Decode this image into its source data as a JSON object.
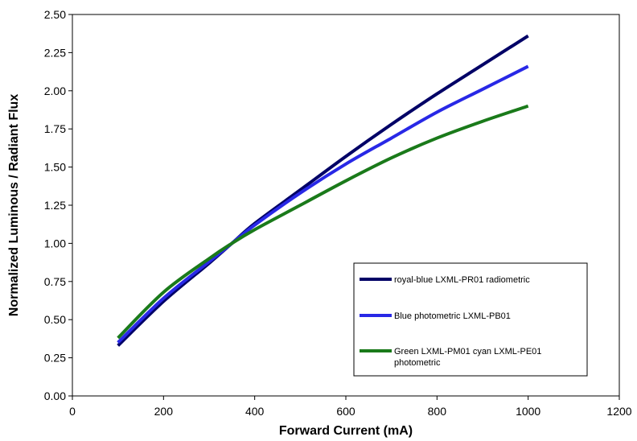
{
  "chart_data": {
    "type": "line",
    "xlabel": "Forward Current (mA)",
    "ylabel": "Normalized Luminous / Radiant Flux",
    "xlim": [
      0,
      1200
    ],
    "ylim": [
      0,
      2.5
    ],
    "x_ticks": [
      "0",
      "200",
      "400",
      "600",
      "800",
      "1000",
      "1200"
    ],
    "y_ticks": [
      "0.00",
      "0.25",
      "0.50",
      "0.75",
      "1.00",
      "1.25",
      "1.50",
      "1.75",
      "2.00",
      "2.25",
      "2.50"
    ],
    "grid": false,
    "legend_position": "lower-right",
    "series": [
      {
        "name": "royal-blue LXML-PR01  radiometric",
        "color": "#000066",
        "x": [
          100,
          200,
          300,
          350,
          400,
          500,
          600,
          700,
          800,
          900,
          1000
        ],
        "y": [
          0.33,
          0.62,
          0.87,
          1.0,
          1.13,
          1.35,
          1.57,
          1.78,
          1.98,
          2.17,
          2.36
        ]
      },
      {
        "name": "Blue photometric LXML-PB01",
        "color": "#2828e6",
        "x": [
          100,
          200,
          300,
          350,
          400,
          500,
          600,
          700,
          800,
          900,
          1000
        ],
        "y": [
          0.35,
          0.64,
          0.88,
          1.0,
          1.12,
          1.33,
          1.52,
          1.69,
          1.86,
          2.01,
          2.16
        ]
      },
      {
        "name": "Green LXML-PM01 cyan LXML-PE01 photometric",
        "color": "#1a7a1a",
        "x": [
          100,
          200,
          300,
          350,
          400,
          500,
          600,
          700,
          800,
          900,
          1000
        ],
        "y": [
          0.38,
          0.68,
          0.9,
          1.0,
          1.09,
          1.25,
          1.41,
          1.56,
          1.69,
          1.8,
          1.9
        ]
      }
    ]
  }
}
